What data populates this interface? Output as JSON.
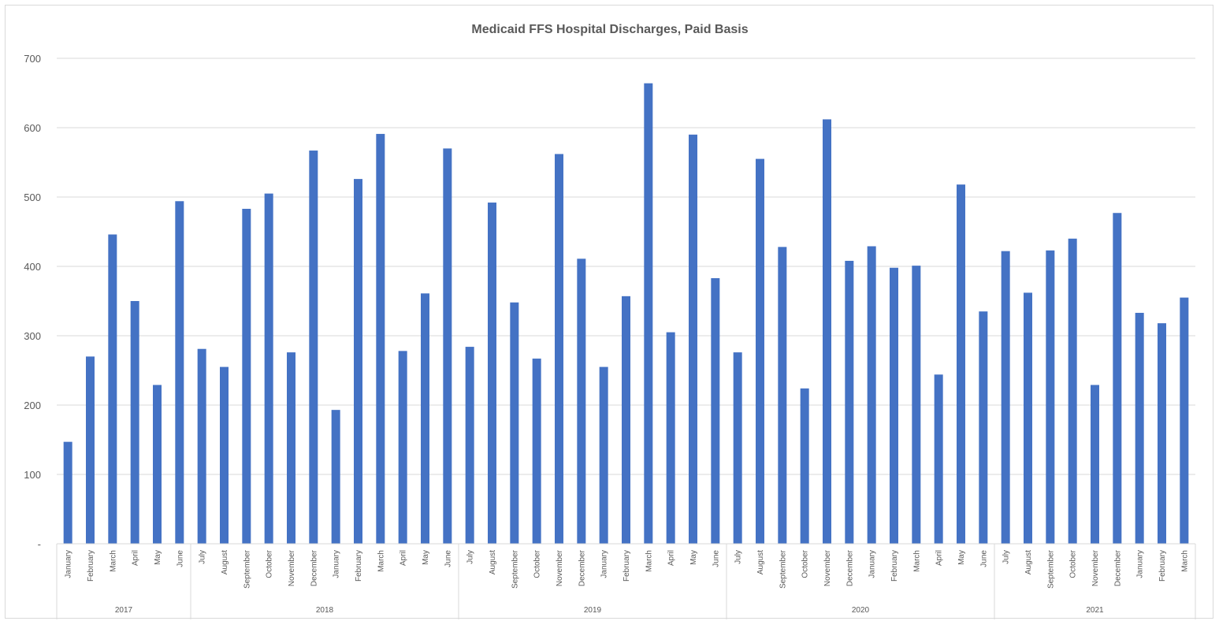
{
  "chart_data": {
    "type": "bar",
    "title": "Medicaid FFS Hospital Discharges, Paid Basis",
    "xlabel": "",
    "ylabel": "",
    "ylim": [
      0,
      700
    ],
    "yticks": [
      {
        "value": 0,
        "label": "-"
      },
      {
        "value": 100,
        "label": "100"
      },
      {
        "value": 200,
        "label": "200"
      },
      {
        "value": 300,
        "label": "300"
      },
      {
        "value": 400,
        "label": "400"
      },
      {
        "value": 500,
        "label": "500"
      },
      {
        "value": 600,
        "label": "600"
      },
      {
        "value": 700,
        "label": "700"
      }
    ],
    "grid": true,
    "bar_color": "#4472c4",
    "categories": [
      "January",
      "February",
      "March",
      "April",
      "May",
      "June",
      "July",
      "August",
      "September",
      "October",
      "November",
      "December",
      "January",
      "February",
      "March",
      "April",
      "May",
      "June",
      "July",
      "August",
      "September",
      "October",
      "November",
      "December",
      "January",
      "February",
      "March",
      "April",
      "May",
      "June",
      "July",
      "August",
      "September",
      "October",
      "November",
      "December",
      "January",
      "February",
      "March",
      "April",
      "May",
      "June",
      "July",
      "August",
      "September",
      "October",
      "November",
      "December",
      "January",
      "February",
      "March"
    ],
    "values": [
      147,
      270,
      446,
      350,
      229,
      494,
      281,
      255,
      483,
      505,
      276,
      567,
      193,
      526,
      591,
      278,
      361,
      570,
      284,
      492,
      348,
      267,
      562,
      411,
      255,
      357,
      664,
      305,
      590,
      383,
      276,
      555,
      428,
      224,
      612,
      408,
      429,
      398,
      401,
      244,
      518,
      335,
      422,
      362,
      423,
      440,
      229,
      477,
      333,
      318,
      355
    ],
    "groups": [
      {
        "label": "2017",
        "start": 0,
        "count": 6
      },
      {
        "label": "2018",
        "start": 6,
        "count": 12
      },
      {
        "label": "2019",
        "start": 18,
        "count": 12
      },
      {
        "label": "2020",
        "start": 30,
        "count": 12
      },
      {
        "label": "2021",
        "start": 42,
        "count": 9
      }
    ]
  }
}
